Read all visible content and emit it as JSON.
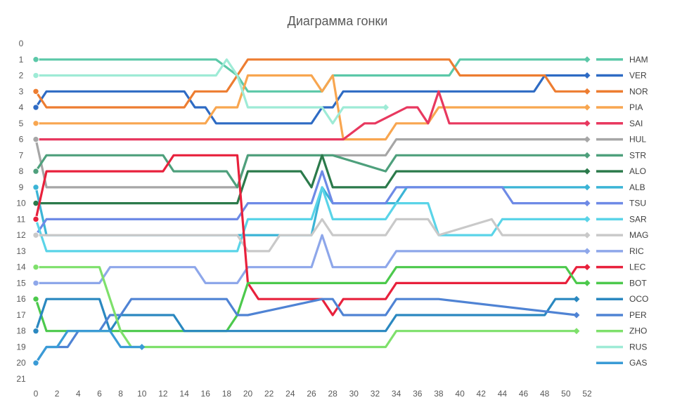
{
  "chart_data": {
    "type": "line",
    "title": "Диаграмма гонки",
    "xlabel": "",
    "ylabel": "",
    "x_ticks": [
      0,
      2,
      4,
      6,
      8,
      10,
      12,
      14,
      16,
      18,
      20,
      22,
      24,
      26,
      28,
      30,
      32,
      34,
      36,
      38,
      40,
      42,
      44,
      46,
      48,
      50,
      52
    ],
    "y_ticks": [
      0,
      1,
      2,
      3,
      4,
      5,
      6,
      7,
      8,
      9,
      10,
      11,
      12,
      13,
      14,
      15,
      16,
      17,
      18,
      19,
      20,
      21
    ],
    "xlim": [
      0,
      52
    ],
    "ylim": [
      0,
      21
    ],
    "y_inverted": true,
    "grid": false,
    "legend_position": "right",
    "series": [
      {
        "name": "HAM",
        "color": "#5BC8A8",
        "x": [
          0,
          17,
          18,
          19,
          20,
          27,
          28,
          29,
          38,
          39,
          40,
          52
        ],
        "values": [
          1,
          1,
          1.5,
          2,
          3,
          3,
          2,
          2,
          2,
          2,
          1,
          1
        ]
      },
      {
        "name": "VER",
        "color": "#2E6BC4",
        "x": [
          0,
          1,
          14,
          15,
          16,
          17,
          26,
          27,
          28,
          29,
          38,
          39,
          47,
          48,
          52
        ],
        "values": [
          4,
          3,
          3,
          4,
          4,
          5,
          5,
          4,
          4,
          3,
          3,
          3,
          3,
          2,
          2
        ]
      },
      {
        "name": "NOR",
        "color": "#ED7D31",
        "x": [
          0,
          1,
          14,
          15,
          18,
          19,
          20,
          26,
          27,
          28,
          29,
          37,
          38,
          39,
          40,
          48,
          49,
          52
        ],
        "values": [
          3,
          4,
          4,
          3,
          3,
          2,
          1,
          1,
          1,
          1,
          1,
          1,
          1,
          1,
          2,
          2,
          3,
          3
        ]
      },
      {
        "name": "PIA",
        "color": "#F8A650",
        "x": [
          0,
          16,
          17,
          19,
          20,
          26,
          27,
          28,
          29,
          33,
          34,
          37,
          38,
          39,
          52
        ],
        "values": [
          5,
          5,
          4,
          4,
          2,
          2,
          3,
          2,
          6,
          6,
          5,
          5,
          4,
          4,
          4
        ]
      },
      {
        "name": "SAI",
        "color": "#E8385F",
        "x": [
          0,
          28,
          29,
          31,
          32,
          35,
          36,
          37,
          38,
          39,
          52
        ],
        "values": [
          6,
          6,
          6,
          5,
          5,
          4,
          4,
          5,
          3,
          5,
          5
        ]
      },
      {
        "name": "HUL",
        "color": "#A6A6A6",
        "x": [
          0,
          1,
          19,
          20,
          26,
          27,
          28,
          33,
          34,
          52
        ],
        "values": [
          6,
          9,
          9,
          7,
          7,
          7,
          7,
          7,
          6,
          6
        ]
      },
      {
        "name": "STR",
        "color": "#4EA07C",
        "x": [
          0,
          1,
          12,
          13,
          18,
          19,
          20,
          26,
          27,
          28,
          33,
          34,
          52
        ],
        "values": [
          8,
          7,
          7,
          8,
          8,
          9,
          7,
          7,
          7,
          7,
          8,
          7,
          7
        ]
      },
      {
        "name": "ALO",
        "color": "#2B7A4B",
        "x": [
          0,
          18,
          19,
          20,
          25,
          26,
          27,
          28,
          33,
          34,
          52
        ],
        "values": [
          10,
          10,
          10,
          8,
          8,
          9,
          7,
          9,
          9,
          8,
          8
        ]
      },
      {
        "name": "ALB",
        "color": "#3BB4D6",
        "x": [
          0,
          1,
          26,
          27,
          28,
          34,
          35,
          43,
          44,
          52
        ],
        "values": [
          9,
          12,
          12,
          9,
          10,
          10,
          9,
          9,
          9,
          9
        ]
      },
      {
        "name": "TSU",
        "color": "#6E8AE6",
        "x": [
          0,
          1,
          19,
          20,
          26,
          27,
          28,
          33,
          34,
          44,
          45,
          52
        ],
        "values": [
          12,
          11,
          11,
          10,
          10,
          8,
          10,
          10,
          9,
          9,
          10,
          10
        ]
      },
      {
        "name": "SAR",
        "color": "#5AD4E8",
        "x": [
          0,
          1,
          19,
          20,
          26,
          27,
          28,
          33,
          34,
          36,
          37,
          38,
          39,
          43,
          44,
          52
        ],
        "values": [
          11,
          13,
          13,
          11,
          11,
          9,
          11,
          11,
          10,
          10,
          10,
          12,
          12,
          12,
          11,
          11
        ]
      },
      {
        "name": "MAG",
        "color": "#C9C9C9",
        "x": [
          0,
          1,
          19,
          20,
          22,
          23,
          26,
          27,
          28,
          33,
          34,
          37,
          38,
          43,
          44,
          52
        ],
        "values": [
          12,
          12,
          12,
          13,
          13,
          12,
          12,
          11,
          12,
          12,
          11,
          11,
          12,
          11,
          12,
          12
        ]
      },
      {
        "name": "RIC",
        "color": "#8EA7EA",
        "x": [
          0,
          6,
          7,
          15,
          16,
          19,
          20,
          26,
          27,
          28,
          33,
          34,
          52
        ],
        "values": [
          15,
          15,
          14,
          14,
          15,
          15,
          14,
          14,
          12,
          14,
          14,
          13,
          13
        ]
      },
      {
        "name": "LEC",
        "color": "#E8213C",
        "x": [
          0,
          1,
          12,
          13,
          19,
          20,
          21,
          26,
          27,
          28,
          29,
          33,
          34,
          38,
          39,
          50,
          51,
          52
        ],
        "values": [
          11,
          8,
          8,
          7,
          7,
          15,
          16,
          16,
          16,
          17,
          16,
          16,
          15,
          15,
          15,
          15,
          14,
          14
        ]
      },
      {
        "name": "BOT",
        "color": "#4CC94C",
        "x": [
          0,
          1,
          18,
          19,
          20,
          21,
          33,
          34,
          50,
          51,
          52
        ],
        "values": [
          16,
          18,
          18,
          17,
          15,
          15,
          15,
          14,
          14,
          15,
          15
        ]
      },
      {
        "name": "OCO",
        "color": "#2A88C0",
        "x": [
          0,
          1,
          6,
          7,
          8,
          9,
          13,
          14,
          26,
          33,
          34,
          37,
          38,
          39,
          48,
          49,
          51
        ],
        "values": [
          18,
          16,
          16,
          18,
          17,
          17,
          17,
          18,
          18,
          18,
          17,
          17,
          17,
          17,
          17,
          16,
          16
        ]
      },
      {
        "name": "PER",
        "color": "#4F83D4",
        "x": [
          0,
          1,
          3,
          4,
          6,
          7,
          8,
          9,
          18,
          19,
          20,
          27,
          28,
          29,
          33,
          34,
          37,
          38,
          51
        ],
        "values": [
          20,
          19,
          19,
          18,
          18,
          17,
          17,
          16,
          16,
          17,
          17,
          16,
          16,
          17,
          17,
          16,
          16,
          16,
          17
        ]
      },
      {
        "name": "ZHO",
        "color": "#7EE06B",
        "x": [
          0,
          1,
          6,
          7,
          8,
          9,
          17,
          18,
          19,
          20,
          26,
          33,
          34,
          51
        ],
        "values": [
          14,
          14,
          14,
          16,
          18,
          19,
          19,
          19,
          19,
          19,
          19,
          19,
          18,
          18
        ]
      },
      {
        "name": "RUS",
        "color": "#9EEBD6",
        "x": [
          0,
          17,
          18,
          19,
          20,
          26,
          27,
          28,
          29,
          33
        ],
        "values": [
          2,
          2,
          1,
          2,
          4,
          4,
          4,
          5,
          4,
          4
        ]
      },
      {
        "name": "GAS",
        "color": "#3A9BD6",
        "x": [
          0,
          1,
          2,
          3,
          4,
          5,
          6,
          7,
          8,
          9,
          10
        ],
        "values": [
          20,
          19,
          19,
          18,
          18,
          18,
          18,
          18,
          19,
          19,
          19
        ]
      }
    ]
  }
}
